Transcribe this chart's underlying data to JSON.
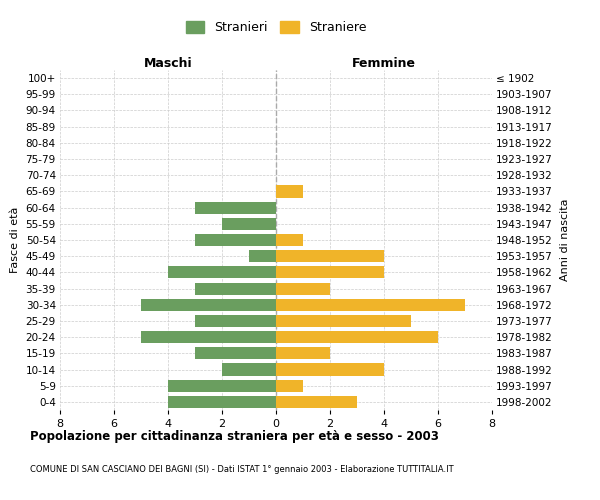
{
  "age_groups": [
    "100+",
    "95-99",
    "90-94",
    "85-89",
    "80-84",
    "75-79",
    "70-74",
    "65-69",
    "60-64",
    "55-59",
    "50-54",
    "45-49",
    "40-44",
    "35-39",
    "30-34",
    "25-29",
    "20-24",
    "15-19",
    "10-14",
    "5-9",
    "0-4"
  ],
  "birth_years": [
    "≤ 1902",
    "1903-1907",
    "1908-1912",
    "1913-1917",
    "1918-1922",
    "1923-1927",
    "1928-1932",
    "1933-1937",
    "1938-1942",
    "1943-1947",
    "1948-1952",
    "1953-1957",
    "1958-1962",
    "1963-1967",
    "1968-1972",
    "1973-1977",
    "1978-1982",
    "1983-1987",
    "1988-1992",
    "1993-1997",
    "1998-2002"
  ],
  "maschi": [
    0,
    0,
    0,
    0,
    0,
    0,
    0,
    0,
    3,
    2,
    3,
    1,
    4,
    3,
    5,
    3,
    5,
    3,
    2,
    4,
    4
  ],
  "femmine": [
    0,
    0,
    0,
    0,
    0,
    0,
    0,
    1,
    0,
    0,
    1,
    4,
    4,
    2,
    7,
    5,
    6,
    2,
    4,
    1,
    3
  ],
  "color_maschi": "#6a9e5f",
  "color_femmine": "#f0b429",
  "title": "Popolazione per cittadinanza straniera per età e sesso - 2003",
  "subtitle": "COMUNE DI SAN CASCIANO DEI BAGNI (SI) - Dati ISTAT 1° gennaio 2003 - Elaborazione TUTTITALIA.IT",
  "ylabel_left": "Fasce di età",
  "ylabel_right": "Anni di nascita",
  "xlabel_maschi": "Maschi",
  "xlabel_femmine": "Femmine",
  "legend_maschi": "Stranieri",
  "legend_femmine": "Straniere",
  "xlim": 8,
  "background_color": "#ffffff",
  "grid_color": "#cccccc",
  "centerline_color": "#aaaaaa"
}
